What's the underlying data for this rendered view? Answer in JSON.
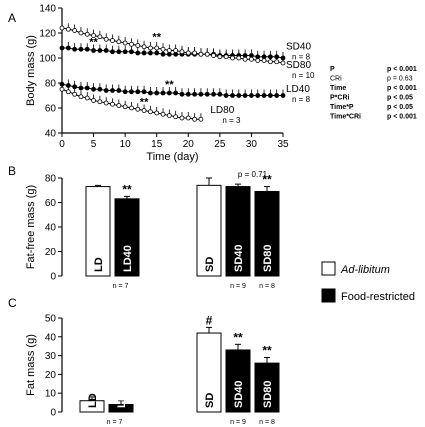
{
  "panelA": {
    "letter": "A",
    "chart_data": {
      "type": "line",
      "xlabel": "Time (day)",
      "ylabel": "Body mass (g)",
      "xlim": [
        0,
        35
      ],
      "ylim": [
        40,
        140
      ],
      "xticks": [
        "0",
        "5",
        "10",
        "15",
        "20",
        "25",
        "30",
        "35"
      ],
      "yticks": [
        "40",
        "60",
        "80",
        "100",
        "120",
        "140"
      ],
      "series": [
        {
          "name": "SD40",
          "n": "n = 8",
          "open": false,
          "x": [
            0,
            1,
            2,
            3,
            4,
            5,
            6,
            7,
            8,
            9,
            10,
            11,
            12,
            13,
            14,
            15,
            16,
            17,
            18,
            19,
            20,
            21,
            22,
            23,
            24,
            25,
            26,
            27,
            28,
            29,
            30,
            31,
            32,
            33,
            34,
            35
          ],
          "y": [
            108,
            108,
            107,
            107,
            107,
            106,
            106,
            106,
            105,
            105,
            105,
            105,
            104,
            104,
            104,
            104,
            103,
            103,
            103,
            103,
            103,
            103,
            103,
            103,
            103,
            102,
            102,
            102,
            102,
            102,
            102,
            101,
            101,
            101,
            101,
            100
          ]
        },
        {
          "name": "SD80",
          "n": "n = 10",
          "open": true,
          "x": [
            0,
            1,
            2,
            3,
            4,
            5,
            6,
            7,
            8,
            9,
            10,
            11,
            12,
            13,
            14,
            15,
            16,
            17,
            18,
            19,
            20,
            21,
            22,
            23,
            24,
            25,
            26,
            27,
            28,
            29,
            30,
            31,
            32,
            33,
            34,
            35
          ],
          "y": [
            124,
            123,
            122,
            120,
            119,
            118,
            117,
            115,
            114,
            113,
            112,
            111,
            110,
            109,
            108,
            108,
            107,
            106,
            106,
            105,
            104,
            104,
            103,
            103,
            102,
            101,
            101,
            100,
            100,
            99,
            99,
            98,
            98,
            97,
            97,
            96
          ]
        },
        {
          "name": "LD40",
          "n": "n = 8",
          "open": false,
          "x": [
            0,
            1,
            2,
            3,
            4,
            5,
            6,
            7,
            8,
            9,
            10,
            11,
            12,
            13,
            14,
            15,
            16,
            17,
            18,
            19,
            20,
            21,
            22,
            23,
            24,
            25,
            26,
            27,
            28,
            29,
            30,
            31,
            32,
            33,
            34,
            35
          ],
          "y": [
            79,
            78,
            77,
            76,
            76,
            75,
            75,
            74,
            74,
            74,
            73,
            73,
            73,
            73,
            72,
            72,
            72,
            72,
            72,
            71,
            71,
            71,
            71,
            71,
            71,
            71,
            70,
            70,
            70,
            70,
            70,
            70,
            70,
            70,
            70,
            70
          ]
        },
        {
          "name": "LD80",
          "n": "n = 3",
          "open": true,
          "x": [
            0,
            1,
            2,
            3,
            4,
            5,
            6,
            7,
            8,
            9,
            10,
            11,
            12,
            13,
            14,
            15,
            16,
            17,
            18,
            19,
            20,
            21,
            22
          ],
          "y": [
            75,
            73,
            71,
            69,
            68,
            66,
            65,
            64,
            63,
            62,
            61,
            60,
            59,
            58,
            57,
            56,
            55,
            54,
            53,
            52,
            52,
            51,
            51
          ]
        }
      ],
      "annotations": [
        {
          "text": "**",
          "x": 5,
          "y": 110
        },
        {
          "text": "**",
          "x": 15,
          "y": 114
        },
        {
          "text": "**",
          "x": 17,
          "y": 76
        },
        {
          "text": "**",
          "x": 13,
          "y": 62
        }
      ],
      "stats": [
        {
          "term": "P",
          "value": "p < 0.001"
        },
        {
          "term": "CRi",
          "value": "p = 0.63"
        },
        {
          "term": "Time",
          "value": "p < 0.001"
        },
        {
          "term": "P*CRi",
          "value": "p < 0.05"
        },
        {
          "term": "Time*P",
          "value": "p < 0.05"
        },
        {
          "term": "Time*CRi",
          "value": "p < 0.001"
        }
      ]
    }
  },
  "panelB": {
    "letter": "B",
    "chart_data": {
      "type": "bar",
      "ylabel": "Fat-free mass (g)",
      "ylim": [
        0,
        80
      ],
      "yticks": [
        "0",
        "20",
        "40",
        "60",
        "80"
      ],
      "groups": [
        {
          "bars": [
            {
              "label": "LD",
              "value": 73,
              "err": 1,
              "fill": "white",
              "mark": ""
            },
            {
              "label": "LD40",
              "value": 63,
              "err": 2,
              "fill": "black",
              "mark": "**"
            }
          ],
          "n": "n = 7"
        },
        {
          "bars": [
            {
              "label": "SD",
              "value": 74,
              "err": 6,
              "fill": "white",
              "mark": ""
            },
            {
              "label": "SD40",
              "value": 73,
              "err": 2,
              "fill": "black",
              "mark": ""
            },
            {
              "label": "SD80",
              "value": 69,
              "err": 4,
              "fill": "black",
              "mark": "**"
            }
          ],
          "n": [
            "n = 9",
            "n = 8"
          ],
          "note": "p = 0.71"
        }
      ]
    }
  },
  "panelC": {
    "letter": "C",
    "chart_data": {
      "type": "bar",
      "ylabel": "Fat mass (g)",
      "ylim": [
        0,
        50
      ],
      "yticks": [
        "0",
        "10",
        "20",
        "30",
        "40",
        "50"
      ],
      "groups": [
        {
          "bars": [
            {
              "label": "LD",
              "value": 6,
              "err": 2,
              "fill": "white",
              "mark": ""
            },
            {
              "label": "LD40",
              "value": 4,
              "err": 2,
              "fill": "black",
              "mark": ""
            }
          ],
          "n": "n = 7"
        },
        {
          "bars": [
            {
              "label": "SD",
              "value": 42,
              "err": 3,
              "fill": "white",
              "mark": "#"
            },
            {
              "label": "SD40",
              "value": 33,
              "err": 3,
              "fill": "black",
              "mark": "**"
            },
            {
              "label": "SD80",
              "value": 26,
              "err": 3,
              "fill": "black",
              "mark": "**"
            }
          ],
          "n": [
            "n = 9",
            "n = 8"
          ]
        }
      ]
    }
  },
  "legend": {
    "items": [
      {
        "label": "Ad-libitum",
        "fill": "white",
        "italic": true
      },
      {
        "label": "Food-restricted",
        "fill": "black",
        "italic": false
      }
    ]
  }
}
